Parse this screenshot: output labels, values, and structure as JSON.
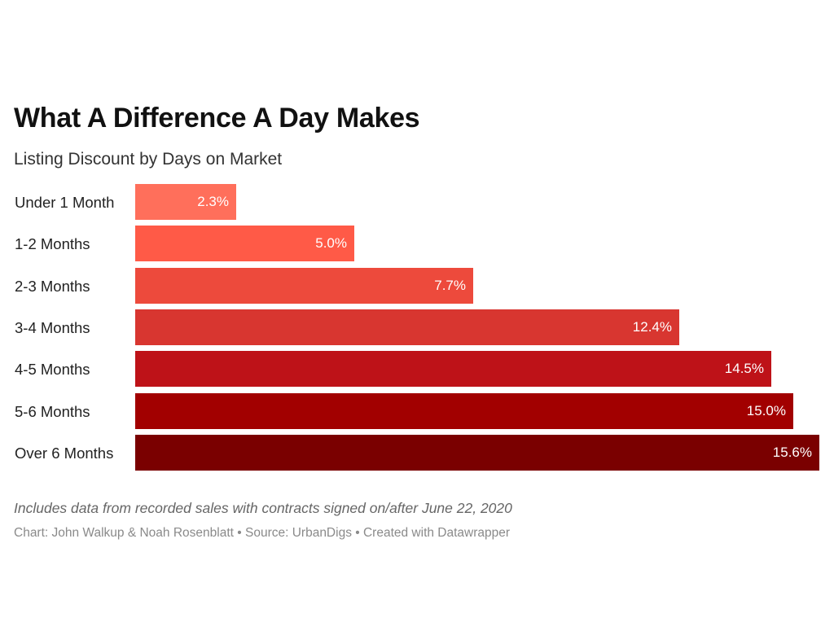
{
  "chart_data": {
    "type": "bar",
    "orientation": "horizontal",
    "title": "What A Difference A Day Makes",
    "subtitle": "Listing Discount by Days on Market",
    "categories": [
      "Under 1 Month",
      "1-2 Months",
      "2-3 Months",
      "3-4 Months",
      "4-5 Months",
      "5-6 Months",
      "Over 6 Months"
    ],
    "values": [
      2.3,
      5.0,
      7.7,
      12.4,
      14.5,
      15.0,
      15.6
    ],
    "value_labels": [
      "2.3%",
      "5.0%",
      "7.7%",
      "12.4%",
      "14.5%",
      "15.0%",
      "15.6%"
    ],
    "colors": [
      "#ff6f5b",
      "#ff5a47",
      "#ed4a3c",
      "#d83630",
      "#be1218",
      "#a20000",
      "#7a0000"
    ],
    "xlim": [
      0,
      15.6
    ],
    "grid": false,
    "legend": "none"
  },
  "notes": {
    "description": "Includes data from recorded sales with contracts signed on/after June 22, 2020",
    "credits": "Chart: John Walkup & Noah Rosenblatt • Source: UrbanDigs • Created with Datawrapper"
  }
}
